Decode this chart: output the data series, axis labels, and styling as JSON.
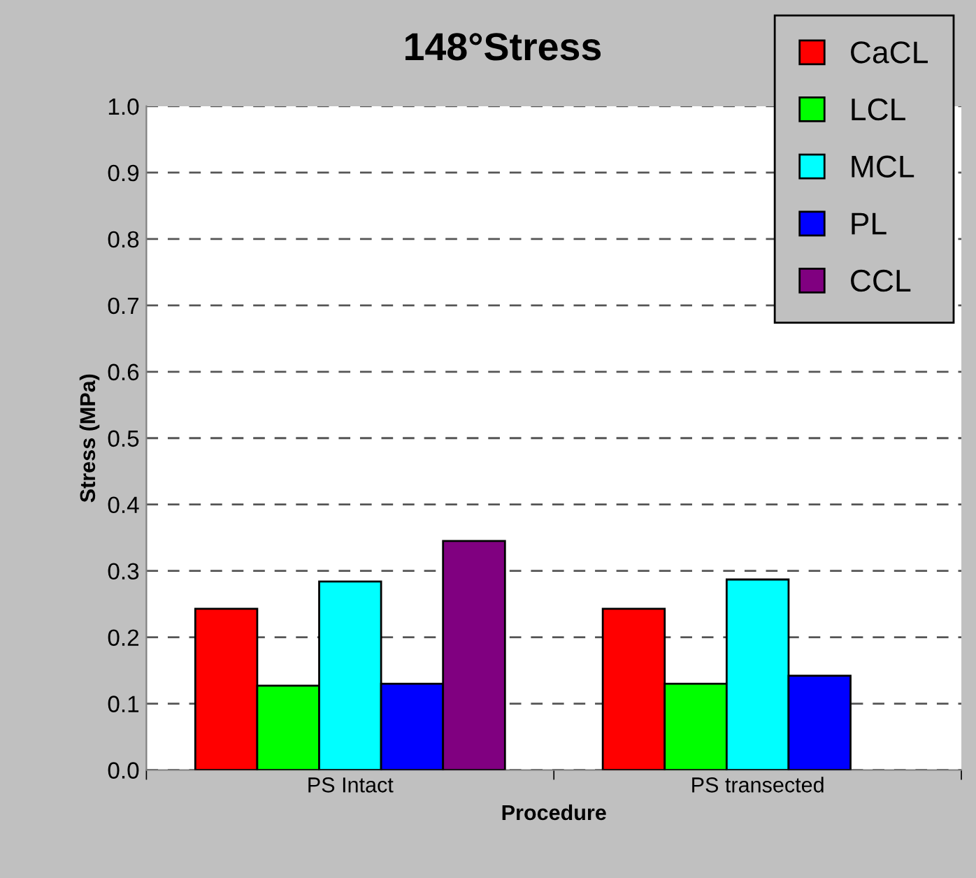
{
  "chart_data": {
    "type": "bar",
    "title": "148°Stress",
    "xlabel": "Procedure",
    "ylabel": "Stress (MPa)",
    "categories": [
      "PS Intact",
      "PS transected"
    ],
    "series": [
      {
        "name": "CaCL",
        "color": "#ff0000",
        "values": [
          0.243,
          0.243
        ]
      },
      {
        "name": "LCL",
        "color": "#00ff00",
        "values": [
          0.127,
          0.13
        ]
      },
      {
        "name": "MCL",
        "color": "#00ffff",
        "values": [
          0.284,
          0.287
        ]
      },
      {
        "name": "PL",
        "color": "#0000ff",
        "values": [
          0.13,
          0.142
        ]
      },
      {
        "name": "CCL",
        "color": "#800080",
        "values": [
          0.345,
          null
        ]
      }
    ],
    "ylim": [
      0,
      1
    ],
    "yticks": [
      {
        "value": 0,
        "label": "0.0"
      },
      {
        "value": 0.1,
        "label": "0.1"
      },
      {
        "value": 0.2,
        "label": "0.2"
      },
      {
        "value": 0.3,
        "label": "0.3"
      },
      {
        "value": 0.4,
        "label": "0.4"
      },
      {
        "value": 0.5,
        "label": "0.5"
      },
      {
        "value": 0.6,
        "label": "0.6"
      },
      {
        "value": 0.7,
        "label": "0.7"
      },
      {
        "value": 0.8,
        "label": "0.8"
      },
      {
        "value": 0.9,
        "label": "0.9"
      },
      {
        "value": 1,
        "label": "1.0"
      }
    ],
    "grid": "y",
    "legend": "top right"
  }
}
